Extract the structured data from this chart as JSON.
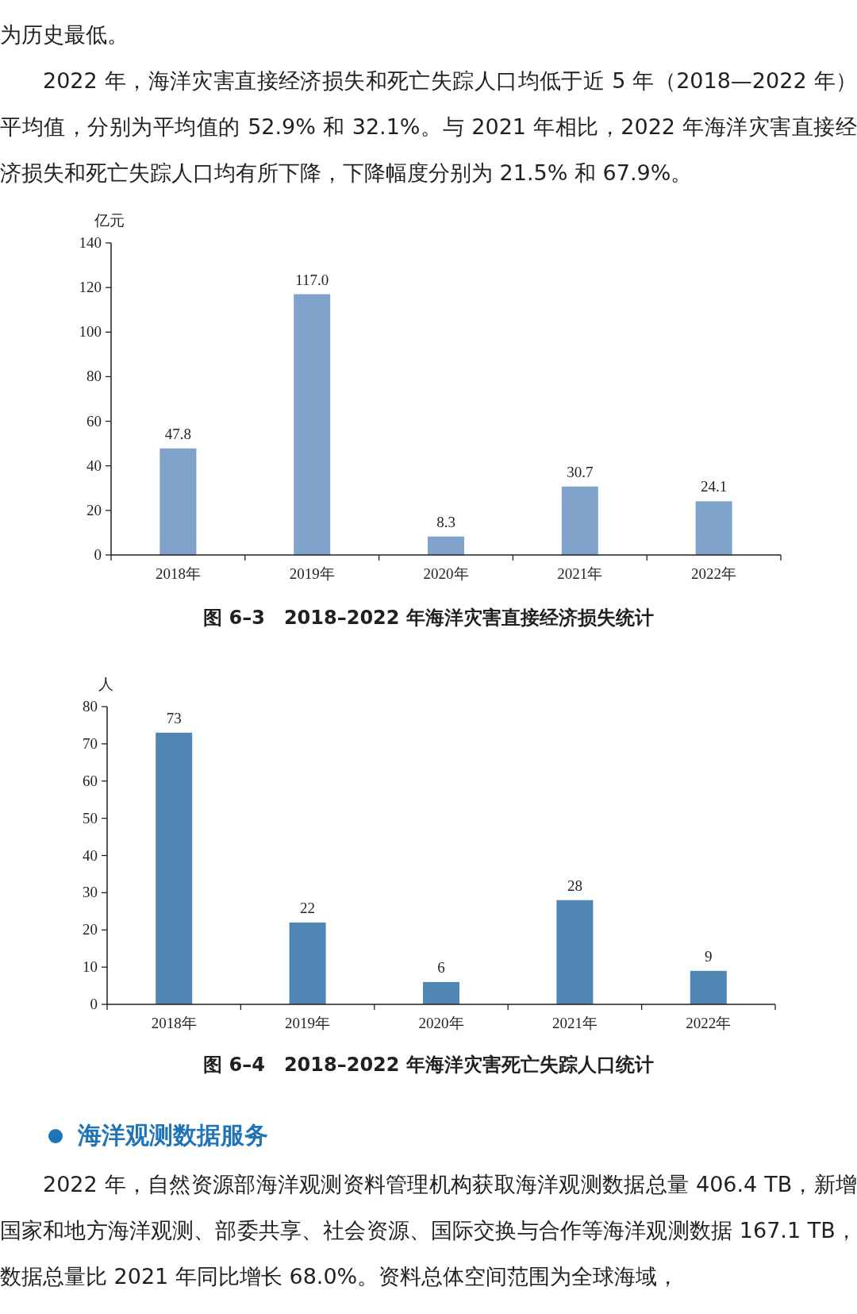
{
  "chart_data": [
    {
      "type": "bar",
      "title": "图 6–3　2018–2022 年海洋灾害直接经济损失统计",
      "ylabel": "亿元",
      "categories": [
        "2018年",
        "2019年",
        "2020年",
        "2021年",
        "2022年"
      ],
      "values": [
        47.8,
        117.0,
        8.3,
        30.7,
        24.1
      ],
      "value_labels": [
        "47.8",
        "117.0",
        "8.3",
        "30.7",
        "24.1"
      ],
      "color": "#7fa3cb",
      "ylim": [
        0,
        140
      ],
      "yticks": [
        0,
        20,
        40,
        60,
        80,
        100,
        120,
        140
      ],
      "annotations": [
        "为历史最低。",
        "2022 年，海洋灾害直接经济损失和死亡失踪人口均低于近 5 年（2018—2022 年）平均值，分别为平均值的 52.9% 和 32.1%。与 2021 年相比，2022 年海洋灾害直接经济损失和死亡失踪人口均有所下降，下降幅度分别为 21.5% 和 67.9%。"
      ]
    },
    {
      "type": "bar",
      "title": "图 6–4　2018–2022 年海洋灾害死亡失踪人口统计",
      "ylabel": "人",
      "categories": [
        "2018年",
        "2019年",
        "2020年",
        "2021年",
        "2022年"
      ],
      "values": [
        73,
        22,
        6,
        28,
        9
      ],
      "data_labels": true,
      "color": "#4f86b4",
      "ylim": [
        0,
        80
      ],
      "yticks": [
        0,
        10,
        20,
        30,
        40,
        50,
        60,
        70,
        80
      ],
      "annotations": [
        "海洋观测数据服务",
        "2022 年，自然资源部海洋观测资料管理机构获取海洋观测数据总量 406.4 TB，新增国家和地方海洋观测、部委共享、社会资源、国际交换与合作等海洋观测数据 167.1 TB，数据总量比 2021 年同比增长 68.0%。资料总体空间范围为全球海域，"
      ]
    }
  ]
}
